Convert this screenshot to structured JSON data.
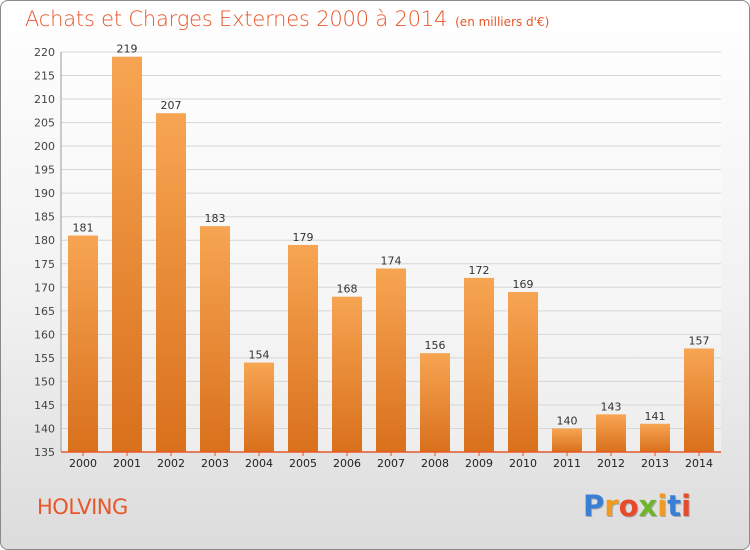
{
  "header": {
    "title": "Achats et Charges Externes 2000 à 2014",
    "unit_note": "(en milliers d'€)"
  },
  "footer": {
    "commune": "HOLVING",
    "brand_letters": [
      "P",
      "r",
      "o",
      "x",
      "i",
      "t",
      "i"
    ],
    "brand_colors": [
      "#3b7fd4",
      "#f29a1f",
      "#e84a2c",
      "#6fb52c",
      "#f29a1f",
      "#3b7fd4",
      "#e84a2c"
    ]
  },
  "chart_data": {
    "type": "bar",
    "categories": [
      "2000",
      "2001",
      "2002",
      "2003",
      "2004",
      "2005",
      "2006",
      "2007",
      "2008",
      "2009",
      "2010",
      "2011",
      "2012",
      "2013",
      "2014"
    ],
    "values": [
      181,
      219,
      207,
      183,
      154,
      179,
      168,
      174,
      156,
      172,
      169,
      140,
      143,
      141,
      157
    ],
    "ylim": [
      135,
      220
    ],
    "yticks": [
      135,
      140,
      145,
      150,
      155,
      160,
      165,
      170,
      175,
      180,
      185,
      190,
      195,
      200,
      205,
      210,
      215,
      220
    ],
    "grid": true,
    "bar_color_light": "#f7a552",
    "bar_color_dark": "#d9701c",
    "axis_color": "#e8562a"
  }
}
